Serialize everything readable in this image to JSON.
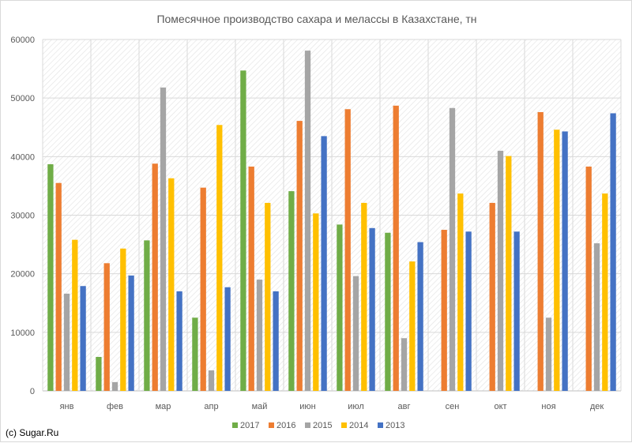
{
  "chart_data": {
    "type": "bar",
    "title": "Помесячное производство сахара и мелассы в Казахстане, тн",
    "xlabel": "",
    "ylabel": "",
    "ylim": [
      0,
      60000
    ],
    "yticks": [
      "0",
      "10000",
      "20000",
      "30000",
      "40000",
      "50000",
      "60000"
    ],
    "categories": [
      "янв",
      "фев",
      "мар",
      "апр",
      "май",
      "июн",
      "июл",
      "авг",
      "сен",
      "окт",
      "ноя",
      "дек"
    ],
    "series": [
      {
        "name": "2017",
        "color": "#70ad47",
        "values": [
          38700,
          5800,
          25700,
          12500,
          54700,
          34100,
          28400,
          27000,
          null,
          null,
          null,
          null
        ]
      },
      {
        "name": "2016",
        "color": "#ed7d31",
        "values": [
          35500,
          21800,
          38800,
          34700,
          38300,
          46100,
          48100,
          48700,
          27500,
          32100,
          47600,
          38300
        ]
      },
      {
        "name": "2015",
        "color": "#a5a5a5",
        "values": [
          16600,
          1500,
          51800,
          3500,
          19000,
          58100,
          19600,
          9000,
          48300,
          41000,
          12500,
          25200
        ]
      },
      {
        "name": "2014",
        "color": "#ffc000",
        "values": [
          25800,
          24300,
          36300,
          45400,
          32100,
          30300,
          32100,
          22100,
          33700,
          40100,
          44600,
          33700
        ]
      },
      {
        "name": "2013",
        "color": "#4472c4",
        "values": [
          17900,
          19700,
          17000,
          17700,
          17000,
          43500,
          27800,
          25400,
          27200,
          27200,
          44300,
          47400
        ]
      }
    ],
    "grid": true,
    "legend_position": "bottom"
  },
  "credit": "(c) Sugar.Ru"
}
